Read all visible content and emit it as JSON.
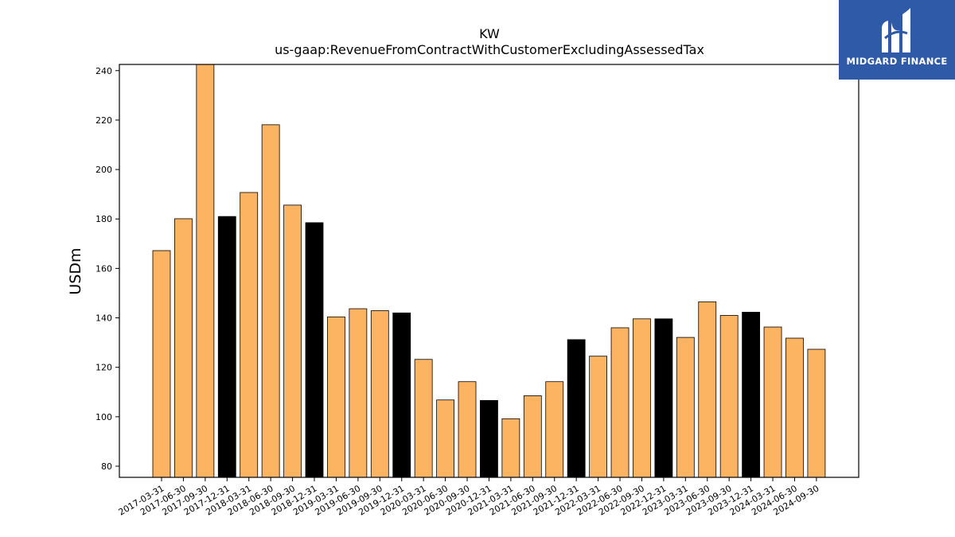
{
  "chart_data": {
    "type": "bar",
    "title": "KW",
    "subtitle": "us-gaap:RevenueFromContractWithCustomerExcludingAssessedTax",
    "xlabel": "",
    "ylabel": "USDm",
    "ylim": [
      75.5,
      242.5
    ],
    "yticks": [
      80,
      100,
      120,
      140,
      160,
      180,
      200,
      220,
      240
    ],
    "grid": false,
    "categories": [
      "2017-03-31",
      "2017-06-30",
      "2017-09-30",
      "2017-12-31",
      "2018-03-31",
      "2018-06-30",
      "2018-09-30",
      "2018-12-31",
      "2019-03-31",
      "2019-06-30",
      "2019-09-30",
      "2019-12-31",
      "2020-03-31",
      "2020-06-30",
      "2020-09-30",
      "2020-12-31",
      "2021-03-31",
      "2021-06-30",
      "2021-09-30",
      "2021-12-31",
      "2022-03-31",
      "2022-06-30",
      "2022-09-30",
      "2022-12-31",
      "2023-03-31",
      "2023-06-30",
      "2023-09-30",
      "2023-12-31",
      "2024-03-31",
      "2024-06-30",
      "2024-09-30"
    ],
    "values": [
      167.2,
      180.1,
      242.9,
      181.0,
      190.7,
      218.1,
      185.6,
      178.5,
      140.4,
      143.7,
      142.9,
      142.0,
      123.2,
      106.8,
      114.2,
      106.6,
      99.2,
      108.5,
      114.2,
      131.2,
      124.5,
      136.0,
      139.6,
      139.6,
      132.1,
      146.5,
      141.0,
      142.3,
      136.3,
      131.8,
      127.3
    ],
    "colors": {
      "quarter": "#fdb462",
      "year_end": "#000000"
    },
    "year_end_indices": [
      3,
      7,
      11,
      15,
      19,
      23,
      27
    ]
  },
  "logo": {
    "text": "MIDGARD FINANCE",
    "background": "#2f5aa8"
  }
}
